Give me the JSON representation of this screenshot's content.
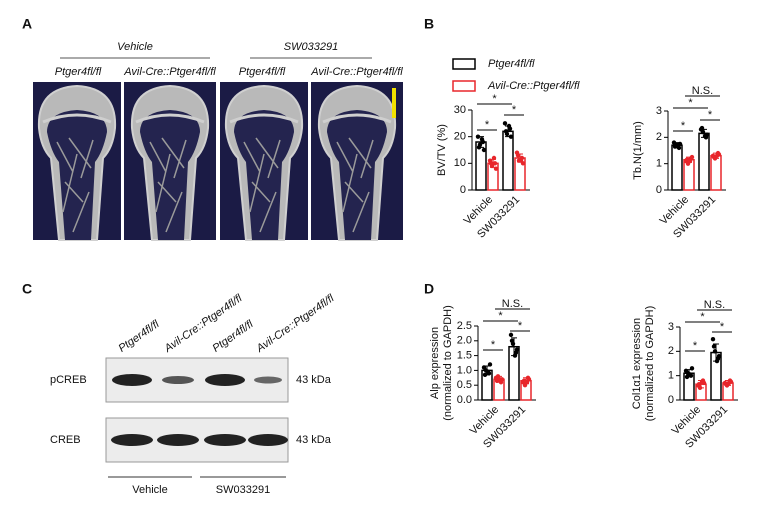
{
  "figure": {
    "panel_labels": [
      "A",
      "B",
      "C",
      "D"
    ],
    "panel_a": {
      "groups": [
        "Vehicle",
        "SW033291"
      ],
      "genotypes": [
        "Ptger4fl/fl",
        "Avil-Cre::Ptger4fl/fl",
        "Ptger4fl/fl",
        "Avil-Cre::Ptger4fl/fl"
      ]
    },
    "panel_c": {
      "lanes": [
        "Ptger4fl/fl",
        "Avil-Cre::Ptger4fl/fl",
        "Ptger4fl/fl",
        "Avil-Cre::Ptger4fl/fl"
      ],
      "rows": [
        "pCREB",
        "CREB"
      ],
      "sizes": [
        "43 kDa",
        "43 kDa"
      ],
      "groups": [
        "Vehicle",
        "SW033291"
      ]
    }
  },
  "chart_data": [
    {
      "type": "bar",
      "ylabel": [
        "BV/TV (%)"
      ],
      "categories": [
        "Vehicle",
        "SW033291"
      ],
      "series": [
        {
          "name": "Ptger4fl/fl",
          "color": "#000000",
          "values": [
            18,
            22
          ],
          "errors": [
            2,
            2
          ],
          "points": [
            [
              20,
              18,
              17,
              15,
              16,
              19
            ],
            [
              25,
              23,
              21,
              20,
              22,
              24
            ]
          ]
        },
        {
          "name": "Avil-Cre::Ptger4fl/fl",
          "color": "#e8262b",
          "values": [
            10,
            12
          ],
          "errors": [
            1.5,
            1.5
          ],
          "points": [
            [
              11,
              10,
              9,
              8,
              10,
              12
            ],
            [
              14,
              12,
              11,
              10,
              13,
              11
            ]
          ]
        }
      ],
      "ylim": [
        0,
        30
      ],
      "yticks": [
        0,
        10,
        20,
        30
      ],
      "annotations": [
        "*",
        "*",
        "*"
      ]
    },
    {
      "type": "bar",
      "ylabel": [
        "Tb.N(1/mm)"
      ],
      "categories": [
        "Vehicle",
        "SW033291"
      ],
      "series": [
        {
          "color": "#000000",
          "values": [
            1.7,
            2.15
          ],
          "errors": [
            0.1,
            0.15
          ],
          "points": [
            [
              1.8,
              1.6,
              1.7,
              1.75,
              1.65,
              1.7
            ],
            [
              2.3,
              2.0,
              2.2,
              2.1,
              2.35,
              2.05
            ]
          ]
        },
        {
          "color": "#e8262b",
          "values": [
            1.15,
            1.3
          ],
          "errors": [
            0.1,
            0.1
          ],
          "points": [
            [
              1.1,
              1.2,
              1.0,
              1.25,
              1.15,
              1.1
            ],
            [
              1.3,
              1.4,
              1.2,
              1.35,
              1.25,
              1.3
            ]
          ]
        }
      ],
      "ylim": [
        0,
        3
      ],
      "yticks": [
        0,
        1,
        2,
        3
      ],
      "annotations": [
        "N.S.",
        "*",
        "*",
        "*"
      ]
    },
    {
      "type": "bar",
      "ylabel": [
        "Alp expression",
        "(normalized to GAPDH)"
      ],
      "categories": [
        "Vehicle",
        "SW033291"
      ],
      "series": [
        {
          "color": "#000000",
          "values": [
            1.0,
            1.8
          ],
          "errors": [
            0.15,
            0.3
          ],
          "points": [
            [
              1.1,
              0.9,
              1.0,
              1.2,
              0.85,
              0.95
            ],
            [
              2.2,
              1.6,
              1.9,
              1.7,
              2.0,
              1.5
            ]
          ]
        },
        {
          "color": "#e8262b",
          "values": [
            0.7,
            0.65
          ],
          "errors": [
            0.1,
            0.1
          ],
          "points": [
            [
              0.75,
              0.6,
              0.8,
              0.7,
              0.65,
              0.7
            ],
            [
              0.6,
              0.75,
              0.5,
              0.7,
              0.65,
              0.6
            ]
          ]
        }
      ],
      "ylim": [
        0,
        2.5
      ],
      "yticks": [
        {
          "value": 0,
          "label": "0.0"
        },
        0.5,
        {
          "value": 1,
          "label": "1.0"
        },
        1.5,
        {
          "value": 2,
          "label": "2.0"
        },
        2.5
      ],
      "annotations": [
        "N.S.",
        "*",
        "*",
        "*"
      ]
    },
    {
      "type": "bar",
      "ylabel": [
        "Col1α1 expression",
        "(normalized to GAPDH)"
      ],
      "categories": [
        "Vehicle",
        "SW033291"
      ],
      "series": [
        {
          "color": "#000000",
          "values": [
            1.1,
            1.95
          ],
          "errors": [
            0.15,
            0.35
          ],
          "points": [
            [
              1.2,
              1.0,
              1.1,
              1.3,
              0.95,
              1.05
            ],
            [
              2.5,
              1.7,
              2.0,
              1.8,
              2.2,
              1.6
            ]
          ]
        },
        {
          "color": "#e8262b",
          "values": [
            0.65,
            0.7
          ],
          "errors": [
            0.15,
            0.1
          ],
          "points": [
            [
              0.6,
              0.8,
              0.5,
              0.7,
              0.65,
              0.75
            ],
            [
              0.7,
              0.8,
              0.6,
              0.75,
              0.65,
              0.7
            ]
          ]
        }
      ],
      "ylim": [
        0,
        3
      ],
      "yticks": [
        0,
        1,
        2,
        3
      ],
      "annotations": [
        "N.S.",
        "*",
        "*",
        "*"
      ]
    }
  ]
}
